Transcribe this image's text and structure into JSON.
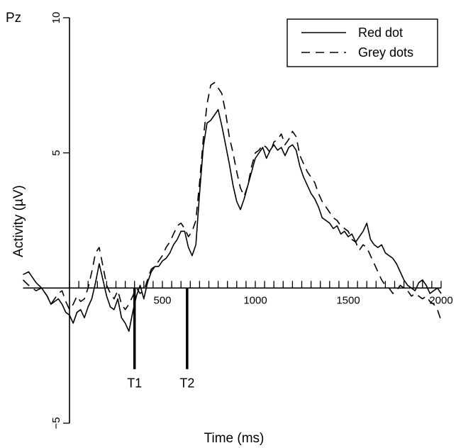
{
  "chart_data": {
    "type": "line",
    "channel_label": "Pz",
    "xlabel": "Time (ms)",
    "ylabel": "Activity (µV)",
    "xlim": [
      -250,
      2000
    ],
    "ylim": [
      -5,
      10
    ],
    "x_ticks": [
      500,
      1000,
      1500,
      2000
    ],
    "y_ticks": [
      -5,
      5,
      10
    ],
    "minor_tick_step_ms": 50,
    "legend_position": "top-right",
    "markers": [
      {
        "label": "T1",
        "x": 350,
        "y_bottom": -3
      },
      {
        "label": "T2",
        "x": 633,
        "y_bottom": -3
      }
    ],
    "series": [
      {
        "name": "Red dot",
        "dash": "solid",
        "x": [
          -250,
          -220,
          -200,
          -180,
          -150,
          -120,
          -100,
          -80,
          -60,
          -40,
          -20,
          0,
          20,
          40,
          60,
          80,
          100,
          120,
          140,
          160,
          180,
          200,
          220,
          240,
          260,
          280,
          300,
          320,
          340,
          360,
          380,
          400,
          420,
          440,
          460,
          480,
          500,
          520,
          540,
          560,
          580,
          600,
          620,
          640,
          660,
          680,
          700,
          720,
          740,
          760,
          780,
          800,
          820,
          840,
          860,
          880,
          900,
          920,
          940,
          960,
          980,
          1000,
          1020,
          1040,
          1060,
          1080,
          1100,
          1120,
          1140,
          1160,
          1180,
          1200,
          1220,
          1240,
          1260,
          1280,
          1300,
          1320,
          1340,
          1360,
          1380,
          1400,
          1420,
          1440,
          1460,
          1480,
          1500,
          1520,
          1540,
          1560,
          1580,
          1600,
          1620,
          1640,
          1660,
          1680,
          1700,
          1720,
          1740,
          1760,
          1780,
          1800,
          1820,
          1840,
          1860,
          1880,
          1900,
          1920,
          1940,
          1960,
          1980,
          2000
        ],
        "values": [
          0.5,
          0.6,
          0.4,
          0.2,
          0.0,
          -0.3,
          -0.6,
          -0.5,
          -0.4,
          -0.6,
          -0.9,
          -1.0,
          -1.3,
          -0.9,
          -0.8,
          -1.1,
          -0.7,
          -0.4,
          0.2,
          0.9,
          0.3,
          -0.3,
          -0.7,
          -0.8,
          -0.4,
          -1.1,
          -1.3,
          -1.6,
          -0.9,
          -0.3,
          0.1,
          -0.4,
          0.2,
          0.6,
          0.8,
          0.8,
          1.0,
          1.1,
          1.3,
          1.6,
          1.8,
          2.1,
          2.1,
          1.5,
          1.2,
          1.6,
          3.5,
          5.2,
          6.1,
          6.2,
          6.4,
          6.6,
          6.0,
          5.3,
          4.6,
          3.8,
          3.2,
          2.9,
          3.3,
          3.8,
          4.3,
          4.8,
          5.0,
          5.2,
          4.8,
          5.1,
          5.3,
          5.1,
          5.2,
          4.9,
          5.2,
          5.3,
          5.1,
          4.5,
          4.1,
          3.8,
          3.5,
          3.3,
          3.0,
          2.6,
          2.5,
          2.4,
          2.2,
          2.3,
          2.0,
          2.1,
          1.9,
          2.0,
          1.7,
          1.9,
          2.1,
          2.4,
          1.8,
          1.6,
          1.5,
          1.6,
          1.3,
          1.2,
          1.1,
          0.9,
          0.6,
          0.3,
          0.1,
          0.0,
          -0.1,
          0.2,
          0.3,
          0.1,
          -0.2,
          -0.1,
          0.0,
          -0.2
        ]
      },
      {
        "name": "Grey dots",
        "dash": "dashed",
        "x": [
          -250,
          -220,
          -200,
          -180,
          -150,
          -120,
          -100,
          -80,
          -60,
          -40,
          -20,
          0,
          20,
          40,
          60,
          80,
          100,
          120,
          140,
          160,
          180,
          200,
          220,
          240,
          260,
          280,
          300,
          320,
          340,
          360,
          380,
          400,
          420,
          440,
          460,
          480,
          500,
          520,
          540,
          560,
          580,
          600,
          620,
          640,
          660,
          680,
          700,
          720,
          740,
          760,
          780,
          800,
          820,
          840,
          860,
          880,
          900,
          920,
          940,
          960,
          980,
          1000,
          1020,
          1040,
          1060,
          1080,
          1100,
          1120,
          1140,
          1160,
          1180,
          1200,
          1220,
          1240,
          1260,
          1280,
          1300,
          1320,
          1340,
          1360,
          1380,
          1400,
          1420,
          1440,
          1460,
          1480,
          1500,
          1520,
          1540,
          1560,
          1580,
          1600,
          1620,
          1640,
          1660,
          1680,
          1700,
          1720,
          1740,
          1760,
          1780,
          1800,
          1820,
          1840,
          1860,
          1880,
          1900,
          1920,
          1940,
          1960,
          1980,
          2000
        ],
        "values": [
          0.3,
          0.1,
          0.0,
          -0.1,
          0.0,
          -0.3,
          -0.6,
          -0.4,
          -0.2,
          -0.1,
          -0.5,
          -0.8,
          -0.6,
          -0.3,
          -0.5,
          -0.4,
          0.0,
          0.6,
          1.3,
          1.5,
          0.8,
          0.1,
          -0.2,
          -0.4,
          -0.1,
          -0.6,
          -0.8,
          -0.6,
          -0.3,
          0.0,
          -0.2,
          -0.1,
          0.3,
          0.7,
          0.8,
          1.0,
          1.2,
          1.5,
          1.7,
          2.0,
          2.3,
          2.4,
          2.2,
          1.9,
          2.1,
          2.5,
          3.9,
          5.5,
          6.8,
          7.5,
          7.6,
          7.4,
          7.2,
          6.5,
          5.6,
          5.0,
          4.3,
          3.7,
          3.4,
          3.8,
          4.5,
          5.0,
          5.1,
          5.3,
          5.2,
          5.0,
          5.4,
          5.5,
          5.7,
          5.3,
          5.5,
          5.8,
          5.6,
          4.9,
          4.6,
          4.3,
          4.1,
          3.9,
          3.5,
          3.2,
          3.0,
          2.8,
          2.6,
          2.5,
          2.3,
          2.2,
          2.1,
          1.8,
          1.7,
          1.4,
          1.6,
          1.5,
          1.2,
          0.9,
          0.6,
          0.3,
          0.1,
          0.0,
          -0.2,
          -0.1,
          0.1,
          0.0,
          -0.1,
          -0.3,
          -0.2,
          -0.3,
          -0.4,
          -0.3,
          -0.5,
          -0.6,
          -0.8,
          -1.2
        ]
      }
    ]
  }
}
